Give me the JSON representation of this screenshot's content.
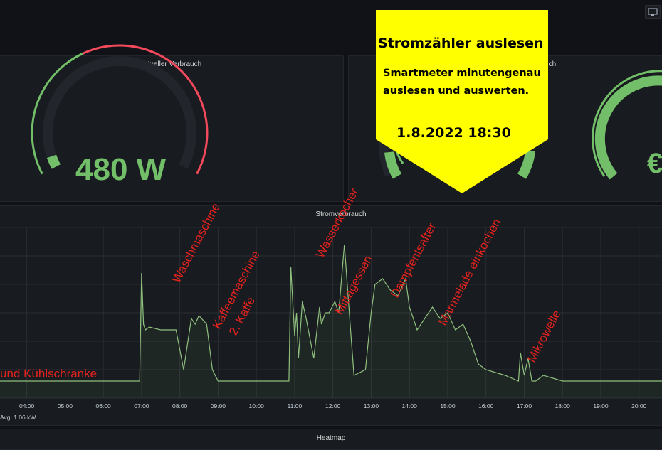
{
  "panels": {
    "current": {
      "title": "Aktueller Verbrauch",
      "value": "480 W",
      "fraction": 0.96
    },
    "daily": {
      "title": "Tagesverbrauch",
      "value": "€"
    },
    "consumption": {
      "title": "Stromverbrauch",
      "legend_avg": "Avg: 1.06 kW"
    },
    "heatmap": {
      "title": "Heatmap"
    }
  },
  "banner": {
    "title": "Stromzähler auslesen",
    "line1": "Smartmeter minutengenau",
    "line2": "auslesen und auswerten.",
    "date": "1.8.2022 18:30",
    "color": "#ffff00"
  },
  "annotations": [
    "Waschmaschine",
    "Kaffeemaschine",
    "2. Kaffe",
    "Wasserkocher",
    "Mittagessen",
    "Dampfentsafter",
    "Marmelade einkochen",
    "Mikrowelle",
    "und Kühlschränke"
  ],
  "colors": {
    "green": "#73bf69",
    "red": "#f2495c",
    "annotation": "#e6221e"
  },
  "chart_data": {
    "type": "area",
    "x_ticks": [
      "04:00",
      "05:00",
      "06:00",
      "07:00",
      "08:00",
      "09:00",
      "10:00",
      "11:00",
      "12:00",
      "13:00",
      "14:00",
      "15:00",
      "16:00",
      "17:00",
      "18:00",
      "19:00",
      "20:00"
    ],
    "x": [
      3.3,
      4.0,
      5.0,
      6.0,
      6.95,
      7.0,
      7.05,
      7.1,
      7.2,
      7.5,
      7.9,
      8.1,
      8.3,
      8.4,
      8.5,
      8.7,
      8.85,
      9.0,
      10.0,
      10.85,
      10.9,
      11.0,
      11.05,
      11.1,
      11.2,
      11.3,
      11.5,
      11.65,
      11.7,
      11.8,
      11.9,
      12.05,
      12.15,
      12.3,
      12.45,
      12.55,
      12.85,
      13.0,
      13.1,
      13.3,
      13.5,
      13.7,
      13.9,
      14.0,
      14.2,
      14.4,
      14.6,
      14.8,
      15.0,
      15.2,
      15.4,
      15.6,
      15.8,
      16.0,
      16.5,
      16.85,
      16.9,
      17.0,
      17.1,
      17.2,
      17.3,
      17.5,
      18.0,
      19.0,
      20.0,
      20.6
    ],
    "y": [
      0.3,
      0.3,
      0.3,
      0.3,
      0.3,
      2.2,
      1.3,
      1.2,
      1.25,
      1.2,
      1.2,
      0.5,
      1.4,
      1.3,
      1.45,
      1.3,
      0.5,
      0.3,
      0.3,
      0.3,
      2.3,
      1.1,
      1.5,
      0.7,
      1.7,
      1.4,
      0.7,
      1.6,
      1.3,
      1.5,
      1.5,
      1.7,
      1.5,
      2.7,
      1.3,
      0.4,
      0.5,
      1.5,
      2.0,
      2.1,
      1.9,
      1.8,
      2.1,
      1.6,
      1.2,
      1.4,
      1.6,
      1.4,
      1.5,
      1.2,
      1.3,
      1.0,
      0.6,
      0.5,
      0.4,
      0.3,
      0.8,
      0.4,
      0.7,
      0.3,
      0.3,
      0.4,
      0.3,
      0.3,
      0.3,
      0.3
    ],
    "xlim": [
      3.3,
      20.6
    ],
    "ylim": [
      0,
      3.0
    ],
    "grid": true
  }
}
